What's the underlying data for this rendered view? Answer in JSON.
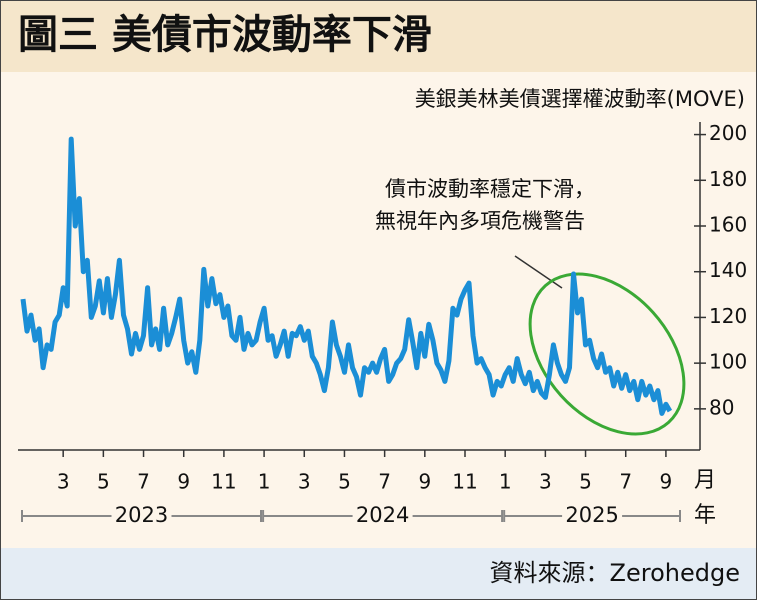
{
  "chart_data": {
    "type": "line",
    "title": "圖三  美債市波動率下滑",
    "y_label": "美銀美林美債選擇權波動率(MOVE)",
    "annotation": [
      "債市波動率穩定下滑，",
      "無視年內多項危機警告"
    ],
    "source": "資料來源：Zerohedge",
    "x_unit": "月",
    "year_unit": "年",
    "years": [
      "2023",
      "2024",
      "2025"
    ],
    "xlim": [
      1,
      34
    ],
    "xticks": [
      {
        "value": 3,
        "label": "3"
      },
      {
        "value": 5,
        "label": "5"
      },
      {
        "value": 7,
        "label": "7"
      },
      {
        "value": 9,
        "label": "9"
      },
      {
        "value": 11,
        "label": "11"
      },
      {
        "value": 13,
        "label": "1"
      },
      {
        "value": 15,
        "label": "3"
      },
      {
        "value": 17,
        "label": "5"
      },
      {
        "value": 19,
        "label": "7"
      },
      {
        "value": 21,
        "label": "9"
      },
      {
        "value": 23,
        "label": "11"
      },
      {
        "value": 25,
        "label": "1"
      },
      {
        "value": 27,
        "label": "3"
      },
      {
        "value": 29,
        "label": "5"
      },
      {
        "value": 31,
        "label": "7"
      },
      {
        "value": 33,
        "label": "9"
      }
    ],
    "ylim": [
      62,
      202
    ],
    "yticks": [
      80,
      100,
      120,
      140,
      160,
      180,
      200
    ],
    "x": [
      1,
      1.2,
      1.4,
      1.6,
      1.8,
      2,
      2.2,
      2.4,
      2.6,
      2.8,
      3,
      3.2,
      3.4,
      3.6,
      3.8,
      4,
      4.2,
      4.4,
      4.6,
      4.8,
      5,
      5.2,
      5.4,
      5.6,
      5.8,
      6,
      6.2,
      6.4,
      6.6,
      6.8,
      7,
      7.2,
      7.4,
      7.6,
      7.8,
      8,
      8.2,
      8.4,
      8.6,
      8.8,
      9,
      9.2,
      9.4,
      9.6,
      9.8,
      10,
      10.2,
      10.4,
      10.6,
      10.8,
      11,
      11.2,
      11.4,
      11.6,
      11.8,
      12,
      12.2,
      12.4,
      12.6,
      12.8,
      13,
      13.2,
      13.4,
      13.6,
      13.8,
      14,
      14.2,
      14.4,
      14.6,
      14.8,
      15,
      15.2,
      15.4,
      15.6,
      15.8,
      16,
      16.2,
      16.4,
      16.6,
      16.8,
      17,
      17.2,
      17.4,
      17.6,
      17.8,
      18,
      18.2,
      18.4,
      18.6,
      18.8,
      19,
      19.2,
      19.4,
      19.6,
      19.8,
      20,
      20.2,
      20.4,
      20.6,
      20.8,
      21,
      21.2,
      21.4,
      21.6,
      21.8,
      22,
      22.2,
      22.4,
      22.6,
      22.8,
      23,
      23.2,
      23.4,
      23.6,
      23.8,
      24,
      24.2,
      24.4,
      24.6,
      24.8,
      25,
      25.2,
      25.4,
      25.6,
      25.8,
      26,
      26.2,
      26.4,
      26.6,
      26.8,
      27,
      27.2,
      27.4,
      27.6,
      27.8,
      28,
      28.2,
      28.4,
      28.6,
      28.8,
      29,
      29.2,
      29.4,
      29.6,
      29.8,
      30,
      30.2,
      30.4,
      30.6,
      30.8,
      31,
      31.2,
      31.4,
      31.6,
      31.8,
      32,
      32.2,
      32.4,
      32.6,
      32.8,
      33,
      33.2
    ],
    "series": [
      {
        "name": "MOVE",
        "color": "#1b8ed6",
        "values": [
          128,
          114,
          121,
          110,
          115,
          98,
          108,
          106,
          118,
          121,
          133,
          125,
          198,
          160,
          172,
          140,
          145,
          120,
          125,
          136,
          122,
          137,
          120,
          130,
          145,
          121,
          115,
          104,
          113,
          106,
          112,
          133,
          108,
          115,
          106,
          124,
          108,
          113,
          120,
          128,
          110,
          100,
          105,
          96,
          110,
          141,
          125,
          137,
          126,
          130,
          120,
          125,
          112,
          110,
          120,
          106,
          113,
          108,
          110,
          118,
          124,
          110,
          112,
          103,
          108,
          114,
          103,
          113,
          112,
          116,
          110,
          114,
          103,
          100,
          95,
          88,
          98,
          118,
          108,
          103,
          96,
          108,
          98,
          94,
          86,
          98,
          96,
          100,
          96,
          102,
          106,
          92,
          95,
          100,
          102,
          106,
          119,
          109,
          98,
          113,
          103,
          117,
          110,
          100,
          97,
          92,
          101,
          124,
          121,
          128,
          132,
          135,
          112,
          100,
          102,
          98,
          95,
          86,
          92,
          90,
          95,
          98,
          92,
          102,
          95,
          91,
          96,
          88,
          92,
          87,
          85,
          95,
          108,
          100,
          95,
          92,
          98,
          139,
          122,
          128,
          108,
          110,
          102,
          98,
          104,
          96,
          98,
          90,
          96,
          89,
          95,
          88,
          92,
          84,
          92,
          86,
          90,
          84,
          88,
          78,
          82,
          79
        ]
      }
    ]
  }
}
